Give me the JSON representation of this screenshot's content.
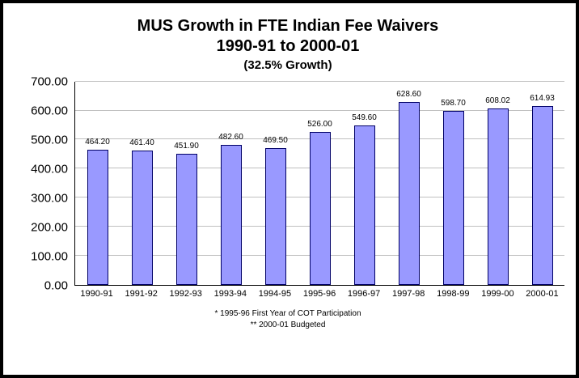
{
  "chart_data": {
    "type": "bar",
    "title_line1": "MUS Growth in FTE Indian Fee Waivers",
    "title_line2": "1990-91 to 2000-01",
    "title_line3": "(32.5% Growth)",
    "categories": [
      "1990-91",
      "1991-92",
      "1992-93",
      "1993-94",
      "1994-95",
      "1995-96",
      "1996-97",
      "1997-98",
      "1998-99",
      "1999-00",
      "2000-01"
    ],
    "values": [
      464.2,
      461.4,
      451.9,
      482.6,
      469.5,
      526.0,
      549.6,
      628.6,
      598.7,
      608.02,
      614.93
    ],
    "value_labels": [
      "464.20",
      "461.40",
      "451.90",
      "482.60",
      "469.50",
      "526.00",
      "549.60",
      "628.60",
      "598.70",
      "608.02",
      "614.93"
    ],
    "ylim": [
      0,
      700
    ],
    "y_tick_values": [
      0,
      100,
      200,
      300,
      400,
      500,
      600,
      700
    ],
    "y_tick_labels": [
      "0.00",
      "100.00",
      "200.00",
      "300.00",
      "400.00",
      "500.00",
      "600.00",
      "700.00"
    ],
    "grid": true,
    "legend": "none",
    "footnotes": [
      "* 1995-96 First Year of COT Participation",
      "** 2000-01 Budgeted"
    ],
    "bar_color": "#9999FF",
    "bar_border_color": "#000066"
  }
}
